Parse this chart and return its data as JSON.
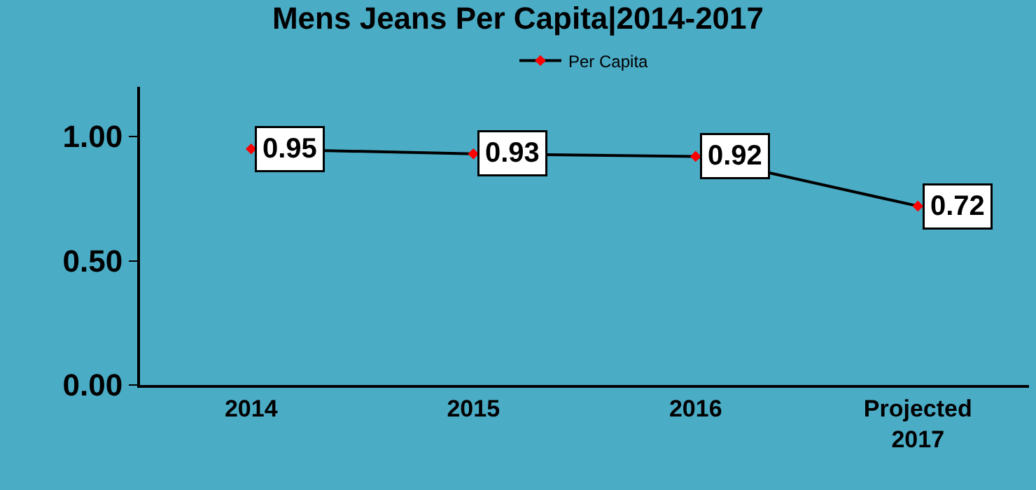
{
  "chart_data": {
    "type": "line",
    "title": "Mens Jeans Per Capita|2014-2017",
    "categories": [
      "2014",
      "2015",
      "2016",
      "Projected 2017"
    ],
    "series": [
      {
        "name": "Per Capita",
        "color": "#000000",
        "values": [
          0.95,
          0.93,
          0.92,
          0.72
        ]
      }
    ],
    "ylim": [
      0,
      1.2
    ],
    "yticks": [
      {
        "value": 0,
        "label": "0.00"
      },
      {
        "value": 0.5,
        "label": "0.50"
      },
      {
        "value": 1,
        "label": "1.00"
      }
    ],
    "data_labels": true,
    "legend": "top",
    "grid": false,
    "marker": "diamond",
    "line_style": "solid"
  }
}
